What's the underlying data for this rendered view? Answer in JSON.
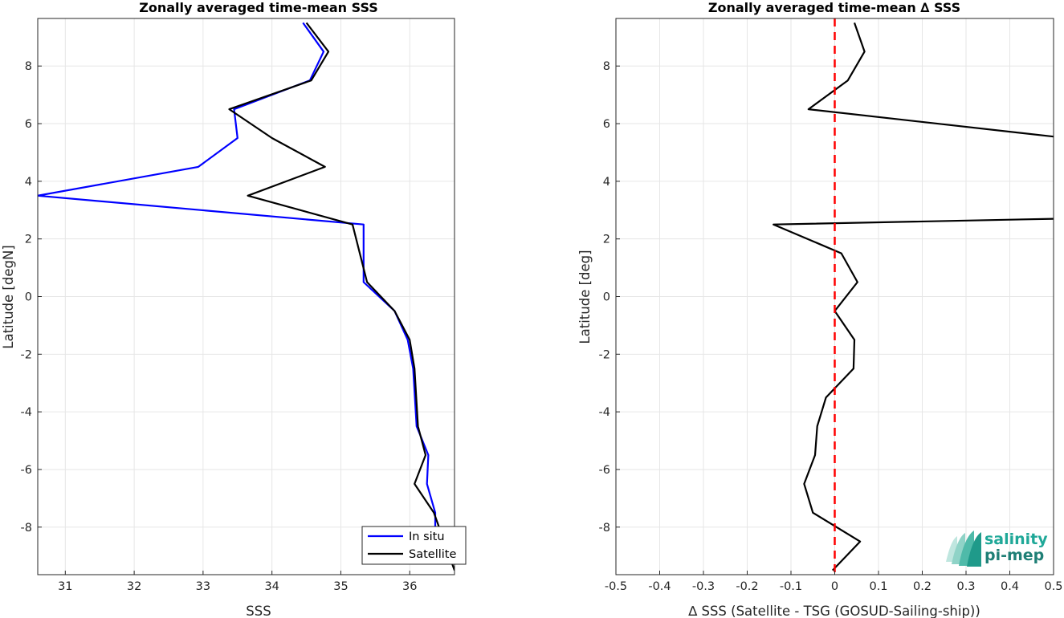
{
  "chart_data": [
    {
      "type": "line",
      "title": "Zonally averaged time-mean SSS",
      "xlabel": "SSS",
      "ylabel": "Latitude [degN]",
      "xlim": [
        30.6,
        36.65
      ],
      "ylim": [
        -9.65,
        9.65
      ],
      "xticks": [
        "31",
        "32",
        "33",
        "34",
        "35",
        "36"
      ],
      "yticks": [
        "8",
        "6",
        "4",
        "2",
        "0",
        "-2",
        "-4",
        "-6",
        "-8"
      ],
      "grid": true,
      "legend_position": "bottom-right",
      "series": [
        {
          "name": "In situ",
          "color": "#0000ff",
          "x": [
            34.45,
            34.75,
            34.55,
            33.45,
            33.5,
            32.93,
            30.6,
            35.33,
            35.33,
            35.78,
            35.97,
            36.05,
            36.1,
            36.27,
            36.25,
            36.37,
            36.37
          ],
          "y": [
            9.5,
            8.5,
            7.5,
            6.5,
            5.5,
            4.5,
            3.5,
            2.5,
            0.5,
            -0.5,
            -1.5,
            -2.5,
            -4.5,
            -5.5,
            -6.5,
            -7.5,
            -8.5
          ]
        },
        {
          "name": "Satellite",
          "color": "#000000",
          "x": [
            34.5,
            34.82,
            34.57,
            33.38,
            34.0,
            34.77,
            33.65,
            35.17,
            35.38,
            35.78,
            36.0,
            36.07,
            36.12,
            36.23,
            36.07,
            36.35,
            36.65
          ],
          "y": [
            9.5,
            8.5,
            7.5,
            6.5,
            5.5,
            4.5,
            3.5,
            2.5,
            0.5,
            -0.5,
            -1.5,
            -2.5,
            -4.5,
            -5.5,
            -6.5,
            -7.5,
            -9.5
          ]
        }
      ]
    },
    {
      "type": "line",
      "title": "Zonally averaged time-mean ∆ SSS",
      "xlabel": "∆ SSS (Satellite - TSG (GOSUD-Sailing-ship))",
      "ylabel": "Latitude [deg]",
      "xlim": [
        -0.5,
        0.5
      ],
      "ylim": [
        -9.65,
        9.65
      ],
      "xticks": [
        "-0.5",
        "-0.4",
        "-0.3",
        "-0.2",
        "-0.1",
        "0",
        "0.1",
        "0.2",
        "0.3",
        "0.4",
        "0.5"
      ],
      "yticks": [
        "8",
        "6",
        "4",
        "2",
        "0",
        "-2",
        "-4",
        "-6",
        "-8"
      ],
      "grid": true,
      "reference_line": {
        "x": 0,
        "color": "#ff0000",
        "style": "dashed"
      },
      "series": [
        {
          "color": "#000000",
          "x": [
            0.045,
            0.068,
            0.03,
            -0.06,
            0.5,
            null,
            0.5,
            -0.14,
            0.015,
            0.052,
            0.0,
            0.045,
            0.043,
            -0.02,
            -0.04,
            -0.045,
            -0.07,
            -0.05,
            0.058,
            -0.005
          ],
          "y": [
            9.5,
            8.5,
            7.5,
            6.5,
            5.55,
            null,
            2.7,
            2.5,
            1.5,
            0.5,
            -0.5,
            -1.5,
            -2.5,
            -3.5,
            -4.5,
            -5.5,
            -6.5,
            -7.5,
            -8.5,
            -9.5
          ]
        }
      ]
    }
  ],
  "logo": {
    "line1": "salinity",
    "line2": "pi-mep",
    "color": "#1fa898"
  }
}
